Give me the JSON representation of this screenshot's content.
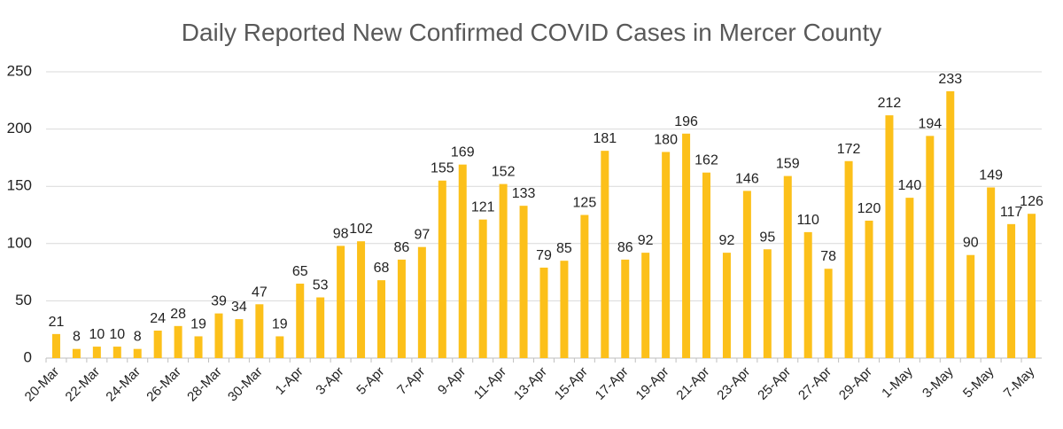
{
  "chart_data": {
    "type": "bar",
    "title": "Daily Reported New Confirmed COVID Cases in Mercer County",
    "categories": [
      "20-Mar",
      null,
      "22-Mar",
      null,
      "24-Mar",
      null,
      "26-Mar",
      null,
      "28-Mar",
      null,
      "30-Mar",
      null,
      "1-Apr",
      null,
      "3-Apr",
      null,
      "5-Apr",
      null,
      "7-Apr",
      null,
      "9-Apr",
      null,
      "11-Apr",
      null,
      "13-Apr",
      null,
      "15-Apr",
      null,
      "17-Apr",
      null,
      "19-Apr",
      null,
      "21-Apr",
      null,
      "23-Apr",
      null,
      "25-Apr",
      null,
      "27-Apr",
      null,
      "29-Apr",
      null,
      "1-May",
      null,
      "3-May",
      null,
      "5-May",
      null,
      "7-May"
    ],
    "values": [
      21,
      8,
      10,
      10,
      8,
      24,
      28,
      19,
      39,
      34,
      47,
      19,
      65,
      53,
      98,
      102,
      68,
      86,
      97,
      155,
      169,
      121,
      152,
      133,
      79,
      85,
      125,
      181,
      86,
      92,
      180,
      196,
      162,
      92,
      146,
      95,
      159,
      110,
      78,
      172,
      120,
      212,
      140,
      194,
      233,
      90,
      149,
      117,
      126
    ],
    "color": "#fcc01a",
    "ylim": [
      0,
      250
    ],
    "yticks": [
      0,
      50,
      100,
      150,
      200,
      250
    ],
    "grid": true
  }
}
